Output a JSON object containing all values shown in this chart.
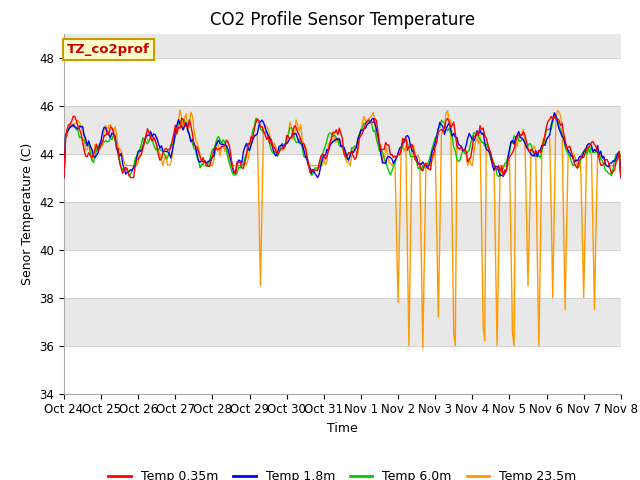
{
  "title": "CO2 Profile Sensor Temperature",
  "ylabel": "Senor Temperature (C)",
  "xlabel": "Time",
  "ylim": [
    34,
    49
  ],
  "yticks": [
    34,
    36,
    38,
    40,
    42,
    44,
    46,
    48
  ],
  "bg_color": "#ffffff",
  "band_color": "#e8e8e8",
  "band_ranges": [
    [
      36,
      38
    ],
    [
      40,
      42
    ],
    [
      44,
      46
    ],
    [
      48,
      50
    ]
  ],
  "x_labels": [
    "Oct 24",
    "Oct 25",
    "Oct 26",
    "Oct 27",
    "Oct 28",
    "Oct 29",
    "Oct 30",
    "Oct 31",
    "Nov 1",
    "Nov 2",
    "Nov 3",
    "Nov 4",
    "Nov 5",
    "Nov 6",
    "Nov 7",
    "Nov 8"
  ],
  "legend_labels": [
    "Temp 0.35m",
    "Temp 1.8m",
    "Temp 6.0m",
    "Temp 23.5m"
  ],
  "legend_colors": [
    "#ff0000",
    "#0000ff",
    "#00cc00",
    "#ff9900"
  ],
  "annotation_text": "TZ_co2prof",
  "annotation_bg": "#ffffcc",
  "annotation_border": "#cc9900",
  "title_fontsize": 12,
  "label_fontsize": 9,
  "tick_fontsize": 8.5
}
